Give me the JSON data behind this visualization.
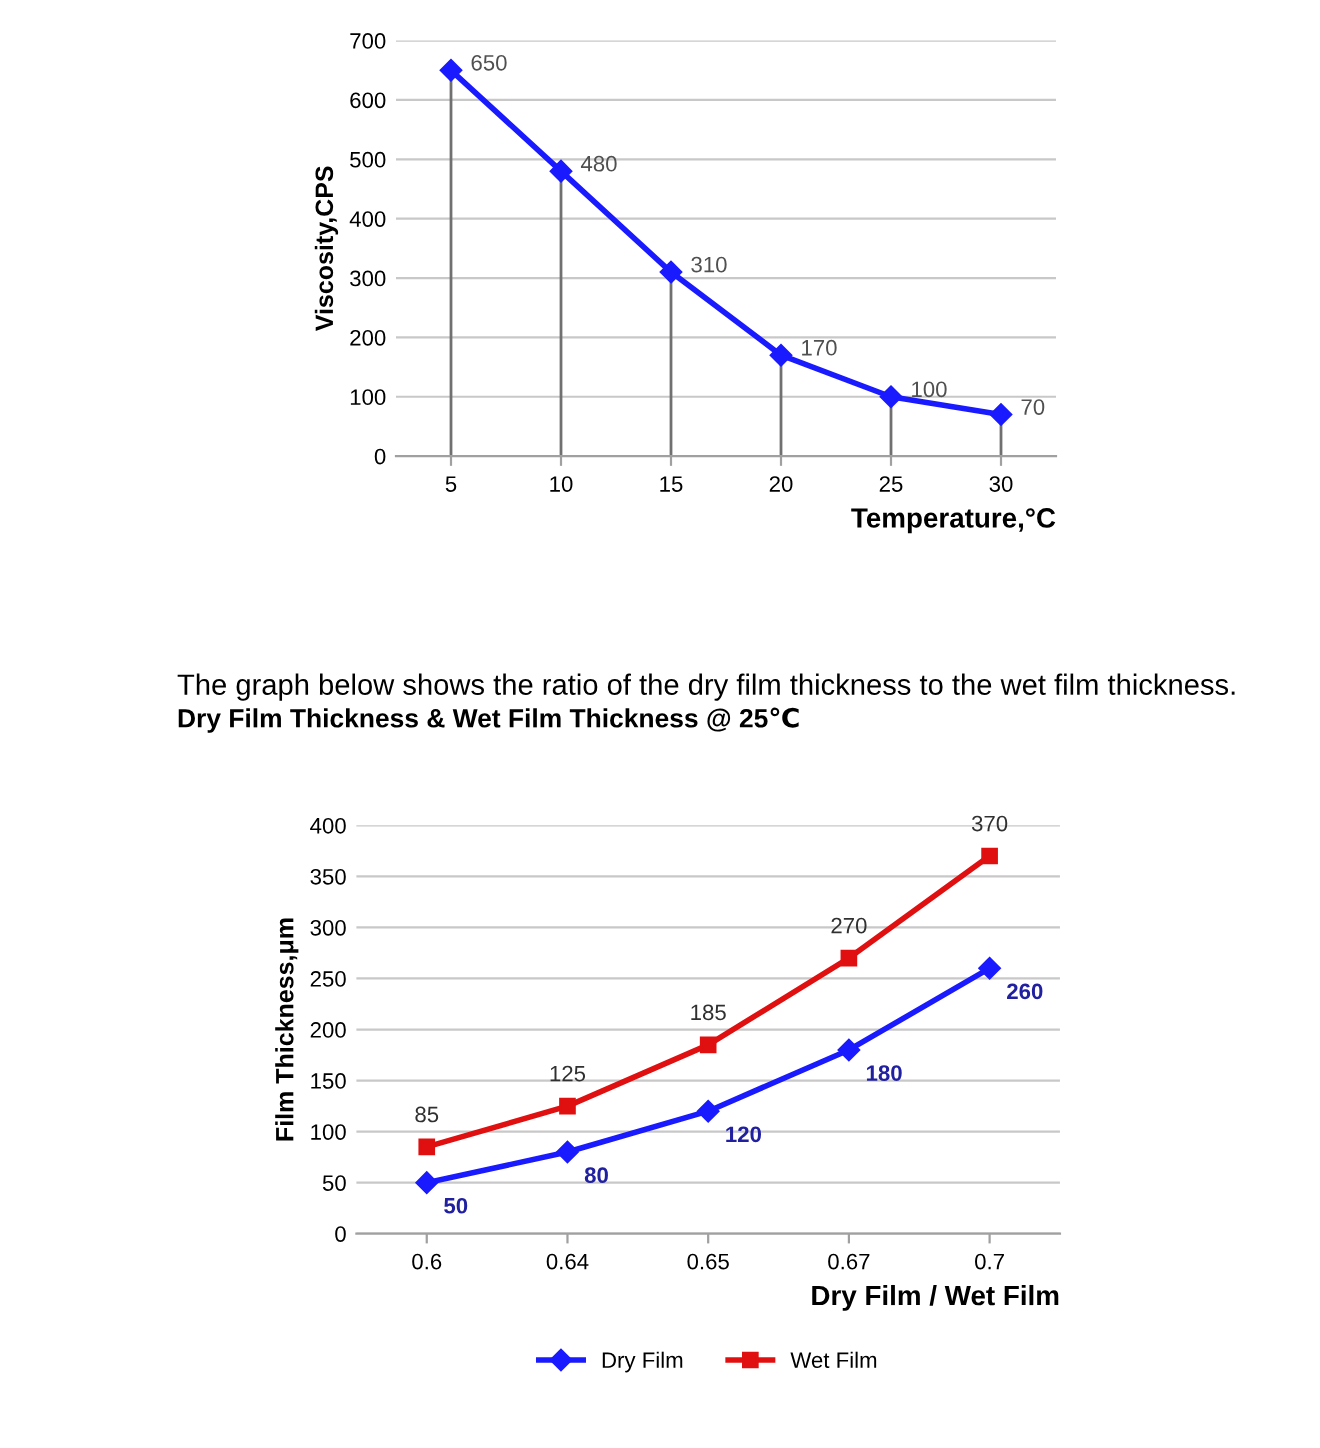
{
  "chart_data": [
    {
      "type": "line",
      "categories": [
        "5",
        "10",
        "15",
        "20",
        "25",
        "30"
      ],
      "xlabel": "Temperature,°C",
      "ylabel": "Viscosity,CPS",
      "ylim": [
        0,
        700
      ],
      "yticks": [
        0,
        100,
        200,
        300,
        400,
        500,
        600,
        700
      ],
      "grid": "y",
      "data_labels": true,
      "legend": false,
      "series": [
        {
          "color": "#1a1aff",
          "marker": "diamond",
          "values": [
            650,
            480,
            310,
            170,
            100,
            70
          ],
          "errors": [
            [
              0,
              650
            ],
            [
              0,
              480
            ],
            [
              0,
              310
            ],
            [
              0,
              170
            ],
            [
              0,
              100
            ],
            [
              0,
              70
            ]
          ]
        }
      ]
    },
    {
      "type": "line",
      "title": "Dry Film Thickness & Wet Film Thickness @ 25℃",
      "subtitle": "The graph below shows the ratio of the dry film thickness to the wet film thickness.",
      "categories": [
        "0.6",
        "0.64",
        "0.65",
        "0.67",
        "0.7"
      ],
      "xlabel": "Dry Film / Wet Film",
      "ylabel": "Film Thickness,μm",
      "ylim": [
        0,
        400
      ],
      "yticks": [
        0,
        50,
        100,
        150,
        200,
        250,
        300,
        350,
        400
      ],
      "grid": "y",
      "data_labels": true,
      "legend": "bottom",
      "series": [
        {
          "name": "Dry Film",
          "color": "#1a1aff",
          "marker": "diamond",
          "values": [
            50,
            80,
            120,
            180,
            260
          ]
        },
        {
          "name": "Wet Film",
          "color": "#e01010",
          "marker": "square",
          "values": [
            85,
            125,
            185,
            270,
            370
          ]
        }
      ]
    }
  ]
}
